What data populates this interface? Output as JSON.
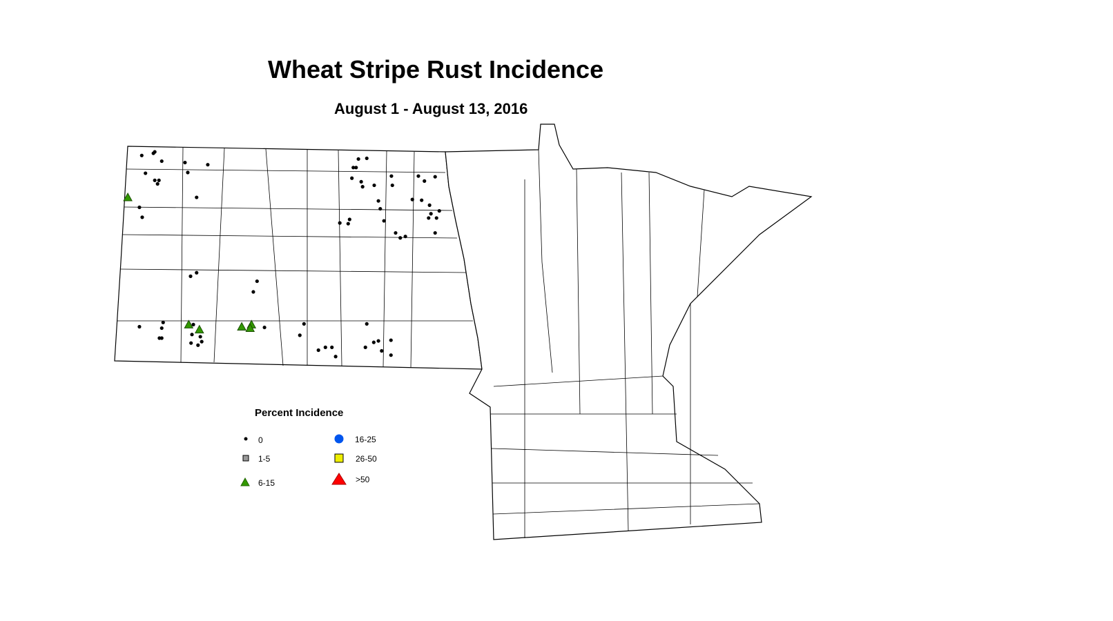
{
  "title": "Wheat Stripe Rust Incidence",
  "subtitle": "August 1 - August 13, 2016",
  "legend": {
    "title": "Percent Incidence",
    "classes": [
      {
        "label": "0",
        "symbol": "small-dot",
        "color": "#000000"
      },
      {
        "label": "1-5",
        "symbol": "square",
        "color": "#999999"
      },
      {
        "label": "6-15",
        "symbol": "triangle",
        "color": "#339900"
      },
      {
        "label": "16-25",
        "symbol": "circle",
        "color": "#0055ee"
      },
      {
        "label": "26-50",
        "symbol": "square",
        "color": "#eeee00"
      },
      {
        "label": ">50",
        "symbol": "triangle",
        "color": "#ff0000"
      }
    ]
  },
  "observations": [
    {
      "lon": -103.6,
      "lat": 48.9,
      "class": "0"
    },
    {
      "lon": -103.35,
      "lat": 48.93,
      "class": "0"
    },
    {
      "lon": -103.32,
      "lat": 48.95,
      "class": "0"
    },
    {
      "lon": -103.17,
      "lat": 48.82,
      "class": "0"
    },
    {
      "lon": -102.67,
      "lat": 48.8,
      "class": "0"
    },
    {
      "lon": -102.61,
      "lat": 48.66,
      "class": "0"
    },
    {
      "lon": -102.18,
      "lat": 48.77,
      "class": "0"
    },
    {
      "lon": -103.52,
      "lat": 48.65,
      "class": "0"
    },
    {
      "lon": -103.32,
      "lat": 48.55,
      "class": "0"
    },
    {
      "lon": -103.23,
      "lat": 48.55,
      "class": "0"
    },
    {
      "lon": -103.26,
      "lat": 48.5,
      "class": "0"
    },
    {
      "lon": -103.65,
      "lat": 48.17,
      "class": "0"
    },
    {
      "lon": -103.59,
      "lat": 48.03,
      "class": "0"
    },
    {
      "lon": -102.42,
      "lat": 48.31,
      "class": "0"
    },
    {
      "lon": -102.55,
      "lat": 47.2,
      "class": "0"
    },
    {
      "lon": -102.42,
      "lat": 47.25,
      "class": "0"
    },
    {
      "lon": -101.12,
      "lat": 47.13,
      "class": "0"
    },
    {
      "lon": -101.2,
      "lat": 46.98,
      "class": "0"
    },
    {
      "lon": -100.96,
      "lat": 46.48,
      "class": "0"
    },
    {
      "lon": -103.65,
      "lat": 46.49,
      "class": "0"
    },
    {
      "lon": -103.14,
      "lat": 46.55,
      "class": "0"
    },
    {
      "lon": -103.17,
      "lat": 46.47,
      "class": "0"
    },
    {
      "lon": -103.22,
      "lat": 46.33,
      "class": "0"
    },
    {
      "lon": -103.17,
      "lat": 46.33,
      "class": "0"
    },
    {
      "lon": -102.49,
      "lat": 46.52,
      "class": "0"
    },
    {
      "lon": -102.52,
      "lat": 46.38,
      "class": "0"
    },
    {
      "lon": -102.34,
      "lat": 46.35,
      "class": "0"
    },
    {
      "lon": -102.54,
      "lat": 46.26,
      "class": "0"
    },
    {
      "lon": -102.31,
      "lat": 46.28,
      "class": "0"
    },
    {
      "lon": -102.39,
      "lat": 46.23,
      "class": "0"
    },
    {
      "lon": -102.58,
      "lat": 46.53,
      "class": "0"
    },
    {
      "lon": -98.76,
      "lat": 48.86,
      "class": "0"
    },
    {
      "lon": -98.94,
      "lat": 48.85,
      "class": "0"
    },
    {
      "lon": -98.99,
      "lat": 48.73,
      "class": "0"
    },
    {
      "lon": -99.05,
      "lat": 48.73,
      "class": "0"
    },
    {
      "lon": -99.08,
      "lat": 48.58,
      "class": "0"
    },
    {
      "lon": -98.88,
      "lat": 48.53,
      "class": "0"
    },
    {
      "lon": -98.85,
      "lat": 48.46,
      "class": "0"
    },
    {
      "lon": -98.6,
      "lat": 48.48,
      "class": "0"
    },
    {
      "lon": -98.23,
      "lat": 48.61,
      "class": "0"
    },
    {
      "lon": -98.21,
      "lat": 48.48,
      "class": "0"
    },
    {
      "lon": -98.51,
      "lat": 48.26,
      "class": "0"
    },
    {
      "lon": -98.47,
      "lat": 48.15,
      "class": "0"
    },
    {
      "lon": -98.39,
      "lat": 47.98,
      "class": "0"
    },
    {
      "lon": -99.34,
      "lat": 47.95,
      "class": "0"
    },
    {
      "lon": -99.16,
      "lat": 47.94,
      "class": "0"
    },
    {
      "lon": -99.13,
      "lat": 48.0,
      "class": "0"
    },
    {
      "lon": -97.65,
      "lat": 48.61,
      "class": "0"
    },
    {
      "lon": -97.52,
      "lat": 48.54,
      "class": "0"
    },
    {
      "lon": -97.29,
      "lat": 48.6,
      "class": "0"
    },
    {
      "lon": -97.78,
      "lat": 48.28,
      "class": "0"
    },
    {
      "lon": -97.58,
      "lat": 48.27,
      "class": "0"
    },
    {
      "lon": -97.41,
      "lat": 48.2,
      "class": "0"
    },
    {
      "lon": -97.2,
      "lat": 48.12,
      "class": "0"
    },
    {
      "lon": -97.38,
      "lat": 48.08,
      "class": "0"
    },
    {
      "lon": -97.43,
      "lat": 48.02,
      "class": "0"
    },
    {
      "lon": -97.26,
      "lat": 48.02,
      "class": "0"
    },
    {
      "lon": -97.29,
      "lat": 47.81,
      "class": "0"
    },
    {
      "lon": -98.14,
      "lat": 47.81,
      "class": "0"
    },
    {
      "lon": -98.04,
      "lat": 47.74,
      "class": "0"
    },
    {
      "lon": -97.93,
      "lat": 47.76,
      "class": "0"
    },
    {
      "lon": -100.11,
      "lat": 46.53,
      "class": "0"
    },
    {
      "lon": -100.2,
      "lat": 46.37,
      "class": "0"
    },
    {
      "lon": -98.76,
      "lat": 46.53,
      "class": "0"
    },
    {
      "lon": -98.61,
      "lat": 46.27,
      "class": "0"
    },
    {
      "lon": -98.51,
      "lat": 46.29,
      "class": "0"
    },
    {
      "lon": -98.24,
      "lat": 46.3,
      "class": "0"
    },
    {
      "lon": -98.79,
      "lat": 46.2,
      "class": "0"
    },
    {
      "lon": -98.44,
      "lat": 46.15,
      "class": "0"
    },
    {
      "lon": -98.24,
      "lat": 46.09,
      "class": "0"
    },
    {
      "lon": -99.8,
      "lat": 46.16,
      "class": "0"
    },
    {
      "lon": -99.65,
      "lat": 46.2,
      "class": "0"
    },
    {
      "lon": -99.51,
      "lat": 46.2,
      "class": "0"
    },
    {
      "lon": -99.43,
      "lat": 46.07,
      "class": "0"
    },
    {
      "lon": -103.9,
      "lat": 48.31,
      "class": "6-15"
    },
    {
      "lon": -102.36,
      "lat": 46.45,
      "class": "6-15"
    },
    {
      "lon": -102.59,
      "lat": 46.52,
      "class": "6-15"
    },
    {
      "lon": -101.45,
      "lat": 46.49,
      "class": "6-15"
    },
    {
      "lon": -101.24,
      "lat": 46.52,
      "class": "6-15"
    },
    {
      "lon": -101.27,
      "lat": 46.47,
      "class": "6-15"
    }
  ]
}
